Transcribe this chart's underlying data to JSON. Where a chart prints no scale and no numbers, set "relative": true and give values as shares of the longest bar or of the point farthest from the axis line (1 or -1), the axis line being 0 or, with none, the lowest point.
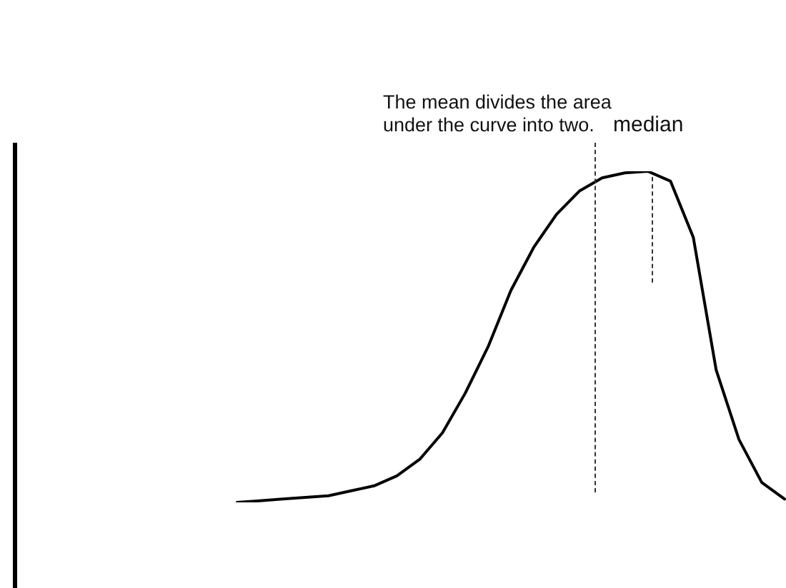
{
  "chart_data": {
    "type": "line",
    "relative": true,
    "categories": [
      null,
      null,
      null,
      null,
      null,
      null,
      null,
      null,
      null,
      null,
      null,
      null,
      null,
      null,
      null,
      null,
      null,
      null,
      null,
      null,
      null,
      null,
      null,
      null,
      null
    ],
    "series": [
      {
        "color": "#000000",
        "values": [
          0,
          0.005,
          0.01,
          0.015,
          0.02,
          0.035,
          0.05,
          0.08,
          0.13,
          0.21,
          0.33,
          0.47,
          0.64,
          0.77,
          0.87,
          0.94,
          0.98,
          0.995,
          1,
          0.97,
          0.8,
          0.4,
          0.19,
          0.06,
          0.01
        ]
      }
    ],
    "legend": false,
    "marker": "none",
    "line_style": "solid",
    "annotations": [
      "The mean divides the area under the curve into two.",
      "median"
    ]
  }
}
